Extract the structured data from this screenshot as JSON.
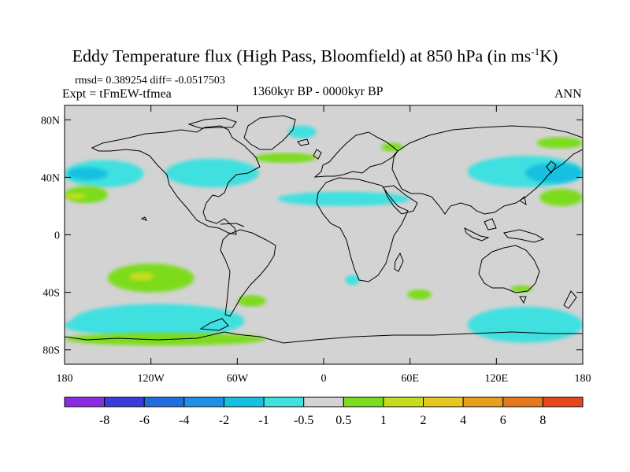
{
  "title": {
    "text": "Eddy Temperature flux (High Pass, Bloomfield) at 850 hPa (in ms",
    "sup": "-1",
    "tail": "K)"
  },
  "stats": "rmsd= 0.389254 diff= -0.0517503",
  "expt": "Expt = tFmEW-tfmea",
  "period": "1360kyr BP - 0000kyr BP",
  "season": "ANN",
  "map": {
    "projection": "cylindrical-equidistant",
    "lon_range": [
      -180,
      180
    ],
    "lat_range": [
      -90,
      90
    ],
    "lat_ticks": [
      {
        "value": 80,
        "label": "80N"
      },
      {
        "value": 40,
        "label": "40N"
      },
      {
        "value": 0,
        "label": "0"
      },
      {
        "value": -40,
        "label": "40S"
      },
      {
        "value": -80,
        "label": "80S"
      }
    ],
    "lon_ticks": [
      {
        "value": -180,
        "label": "180"
      },
      {
        "value": -120,
        "label": "120W"
      },
      {
        "value": -60,
        "label": "60W"
      },
      {
        "value": 0,
        "label": "0"
      },
      {
        "value": 60,
        "label": "60E"
      },
      {
        "value": 120,
        "label": "120E"
      },
      {
        "value": 180,
        "label": "180"
      }
    ],
    "background_color": "#d3d3d3",
    "coast_color": "#000000"
  },
  "colorbar": {
    "colors": [
      "#8a2be2",
      "#3b3bdc",
      "#1e6ee0",
      "#1e90e8",
      "#15c0e0",
      "#40e0e0",
      "#d3d3d3",
      "#7cdc1e",
      "#c8dc1e",
      "#e6c81e",
      "#e6a01e",
      "#e6781e",
      "#e6461e"
    ],
    "labels": [
      "-8",
      "-6",
      "-4",
      "-2",
      "-1",
      "-0.5",
      "0.5",
      "1",
      "2",
      "4",
      "6",
      "8"
    ]
  },
  "regions": [
    {
      "level": "-1",
      "color": "#40e0e0",
      "lon": [
        -180,
        -125
      ],
      "lat": [
        33,
        52
      ]
    },
    {
      "level": "-2",
      "color": "#15c0e0",
      "lon": [
        -178,
        -150
      ],
      "lat": [
        38,
        47
      ]
    },
    {
      "level": "-1",
      "color": "#40e0e0",
      "lon": [
        -110,
        -45
      ],
      "lat": [
        33,
        53
      ]
    },
    {
      "level": "-1",
      "color": "#40e0e0",
      "lon": [
        -32,
        60
      ],
      "lat": [
        20,
        30
      ]
    },
    {
      "level": "-1",
      "color": "#40e0e0",
      "lon": [
        -25,
        -5
      ],
      "lat": [
        67,
        76
      ]
    },
    {
      "level": "-1",
      "color": "#40e0e0",
      "lon": [
        100,
        180
      ],
      "lat": [
        33,
        55
      ]
    },
    {
      "level": "-2",
      "color": "#15c0e0",
      "lon": [
        140,
        180
      ],
      "lat": [
        36,
        50
      ]
    },
    {
      "level": "-1",
      "color": "#40e0e0",
      "lon": [
        -175,
        -55
      ],
      "lat": [
        -72,
        -48
      ]
    },
    {
      "level": "-1",
      "color": "#40e0e0",
      "lon": [
        100,
        180
      ],
      "lat": [
        -75,
        -50
      ]
    },
    {
      "level": "-1",
      "color": "#40e0e0",
      "lon": [
        -180,
        -140
      ],
      "lat": [
        -68,
        -58
      ]
    },
    {
      "level": "-1",
      "color": "#40e0e0",
      "lon": [
        15,
        25
      ],
      "lat": [
        -35,
        -28
      ]
    },
    {
      "level": "1",
      "color": "#7cdc1e",
      "lon": [
        -180,
        -150
      ],
      "lat": [
        22,
        34
      ]
    },
    {
      "level": "2",
      "color": "#c8dc1e",
      "lon": [
        -180,
        -165
      ],
      "lat": [
        25,
        29
      ]
    },
    {
      "level": "1",
      "color": "#7cdc1e",
      "lon": [
        -48,
        -5
      ],
      "lat": [
        50,
        57
      ]
    },
    {
      "level": "1",
      "color": "#7cdc1e",
      "lon": [
        40,
        55
      ],
      "lat": [
        58,
        64
      ]
    },
    {
      "level": "1",
      "color": "#7cdc1e",
      "lon": [
        150,
        180
      ],
      "lat": [
        20,
        32
      ]
    },
    {
      "level": "1",
      "color": "#7cdc1e",
      "lon": [
        148,
        180
      ],
      "lat": [
        60,
        68
      ]
    },
    {
      "level": "1",
      "color": "#7cdc1e",
      "lon": [
        -150,
        -90
      ],
      "lat": [
        -40,
        -20
      ]
    },
    {
      "level": "2",
      "color": "#c8dc1e",
      "lon": [
        -135,
        -118
      ],
      "lat": [
        -32,
        -26
      ]
    },
    {
      "level": "1",
      "color": "#7cdc1e",
      "lon": [
        -180,
        -40
      ],
      "lat": [
        -77,
        -68
      ]
    },
    {
      "level": "1",
      "color": "#7cdc1e",
      "lon": [
        -60,
        -40
      ],
      "lat": [
        -50,
        -42
      ]
    },
    {
      "level": "1",
      "color": "#7cdc1e",
      "lon": [
        58,
        75
      ],
      "lat": [
        -45,
        -38
      ]
    },
    {
      "level": "1",
      "color": "#7cdc1e",
      "lon": [
        130,
        145
      ],
      "lat": [
        -40,
        -35
      ]
    }
  ]
}
